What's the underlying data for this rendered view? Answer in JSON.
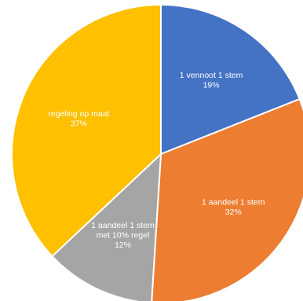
{
  "chart_data": {
    "type": "pie",
    "title": "",
    "slices": [
      {
        "label": "1 vennoot 1 stem",
        "value": 19,
        "value_label": "19%",
        "color": "#4472C4"
      },
      {
        "label": "1 aandeel 1 stem",
        "value": 32,
        "value_label": "32%",
        "color": "#ED7D31"
      },
      {
        "label": "1 aandeel 1 stem met 10% regel",
        "label_lines": [
          "1 aandeel 1 stem",
          "met 10% regel"
        ],
        "value": 12,
        "value_label": "12%",
        "color": "#A5A5A5"
      },
      {
        "label": "regeling op maat",
        "value": 37,
        "value_label": "37%",
        "color": "#FFC000"
      }
    ],
    "start_angle_deg": 0,
    "direction": "clockwise",
    "legend": "none"
  }
}
